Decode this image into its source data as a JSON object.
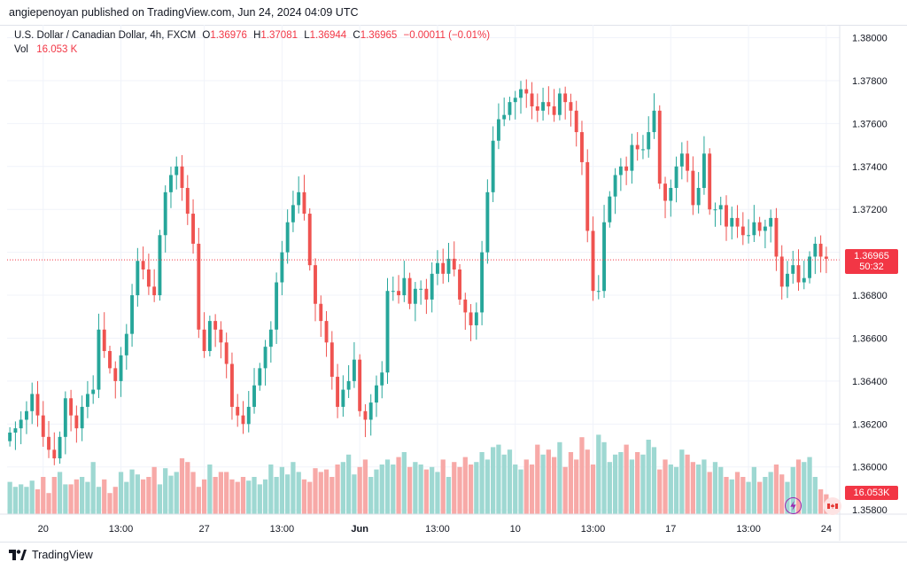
{
  "header": {
    "caption": "angiepenoyan published on TradingView.com, Jun 24, 2024 04:09 UTC"
  },
  "legend": {
    "symbol": "U.S. Dollar / Canadian Dollar, 4h, FXCM",
    "o_label": "O",
    "o_value": "1.36976",
    "h_label": "H",
    "h_value": "1.37081",
    "l_label": "L",
    "l_value": "1.36944",
    "c_label": "C",
    "c_value": "1.36965",
    "change": "−0.00011 (−0.01%)",
    "vol_label": "Vol",
    "vol_value": "16.053 K"
  },
  "price_tag": {
    "price": "1.36965",
    "countdown": "50:32"
  },
  "volume_tag": "16.053K",
  "footer": {
    "brand": "TradingView"
  },
  "colors": {
    "up": "#26a69a",
    "down": "#ef5350",
    "up_volume": "#9ed8d2",
    "down_volume": "#f7a9a7",
    "last_price": "#f23645"
  },
  "chart_data": {
    "type": "candlestick",
    "symbol": "USDCAD",
    "interval": "4h",
    "ylim": [
      1.3578,
      1.3806
    ],
    "y_ticks": [
      1.358,
      1.36,
      1.362,
      1.364,
      1.366,
      1.368,
      1.37,
      1.372,
      1.374,
      1.376,
      1.378,
      1.38
    ],
    "y_tick_labels": [
      "1.35800",
      "1.36000",
      "1.36200",
      "1.36400",
      "1.36600",
      "1.36800",
      "1.37000",
      "1.37200",
      "1.37400",
      "1.37600",
      "1.37800",
      "1.38000"
    ],
    "x_tick_labels": [
      {
        "label": "20",
        "bar": 6
      },
      {
        "label": "13:00",
        "bar": 20
      },
      {
        "label": "27",
        "bar": 35
      },
      {
        "label": "13:00",
        "bar": 49
      },
      {
        "label": "Jun",
        "bar": 63
      },
      {
        "label": "13:00",
        "bar": 77
      },
      {
        "label": "10",
        "bar": 91
      },
      {
        "label": "13:00",
        "bar": 105
      },
      {
        "label": "17",
        "bar": 119
      },
      {
        "label": "13:00",
        "bar": 133
      },
      {
        "label": "24",
        "bar": 147
      }
    ],
    "last_price": 1.36965,
    "volume_scale_max": 1,
    "series": [
      {
        "name": "USDCAD",
        "close": [
          1.3616,
          1.3618,
          1.3622,
          1.3626,
          1.3634,
          1.3624,
          1.3614,
          1.3608,
          1.3604,
          1.3614,
          1.3632,
          1.3624,
          1.3618,
          1.3628,
          1.3634,
          1.3636,
          1.3664,
          1.3654,
          1.3646,
          1.364,
          1.3652,
          1.3662,
          1.368,
          1.3696,
          1.3692,
          1.3684,
          1.368,
          1.3708,
          1.3728,
          1.3736,
          1.374,
          1.373,
          1.3718,
          1.3704,
          1.3664,
          1.3654,
          1.3668,
          1.3664,
          1.3658,
          1.3648,
          1.3628,
          1.3624,
          1.362,
          1.3628,
          1.3638,
          1.3646,
          1.3656,
          1.3664,
          1.3686,
          1.37,
          1.3714,
          1.3722,
          1.3728,
          1.3718,
          1.3694,
          1.3676,
          1.3668,
          1.3658,
          1.3642,
          1.3628,
          1.3636,
          1.364,
          1.365,
          1.3626,
          1.3622,
          1.363,
          1.3638,
          1.3644,
          1.3682,
          1.3682,
          1.368,
          1.3688,
          1.3676,
          1.3683,
          1.3683,
          1.3678,
          1.369,
          1.3695,
          1.369,
          1.3697,
          1.3692,
          1.3678,
          1.3672,
          1.3666,
          1.3672,
          1.37,
          1.3728,
          1.3752,
          1.3762,
          1.3764,
          1.377,
          1.3772,
          1.3776,
          1.3774,
          1.3768,
          1.3766,
          1.377,
          1.3768,
          1.3764,
          1.3774,
          1.377,
          1.3766,
          1.3756,
          1.3742,
          1.371,
          1.3682,
          1.3682,
          1.3714,
          1.3726,
          1.3736,
          1.374,
          1.3738,
          1.375,
          1.3748,
          1.3748,
          1.3756,
          1.3766,
          1.3732,
          1.3724,
          1.373,
          1.374,
          1.3746,
          1.3738,
          1.3722,
          1.373,
          1.3746,
          1.372,
          1.372,
          1.3722,
          1.3712,
          1.3716,
          1.3712,
          1.3708,
          1.3708,
          1.3714,
          1.371,
          1.3712,
          1.3716,
          1.3698,
          1.3684,
          1.369,
          1.3694,
          1.3686,
          1.3688,
          1.3698,
          1.3704,
          1.3698,
          1.3697
        ]
      }
    ],
    "volume": [
      0.26,
      0.22,
      0.24,
      0.22,
      0.27,
      0.2,
      0.3,
      0.17,
      0.3,
      0.34,
      0.24,
      0.24,
      0.28,
      0.3,
      0.26,
      0.42,
      0.22,
      0.28,
      0.17,
      0.22,
      0.34,
      0.26,
      0.36,
      0.32,
      0.28,
      0.3,
      0.38,
      0.24,
      0.37,
      0.31,
      0.34,
      0.45,
      0.42,
      0.34,
      0.22,
      0.28,
      0.4,
      0.3,
      0.34,
      0.34,
      0.28,
      0.26,
      0.3,
      0.27,
      0.3,
      0.24,
      0.28,
      0.4,
      0.3,
      0.38,
      0.32,
      0.42,
      0.34,
      0.28,
      0.26,
      0.37,
      0.34,
      0.36,
      0.3,
      0.4,
      0.42,
      0.48,
      0.32,
      0.38,
      0.44,
      0.3,
      0.36,
      0.4,
      0.44,
      0.4,
      0.46,
      0.5,
      0.38,
      0.42,
      0.4,
      0.36,
      0.38,
      0.34,
      0.44,
      0.3,
      0.42,
      0.38,
      0.46,
      0.4,
      0.42,
      0.5,
      0.44,
      0.54,
      0.56,
      0.48,
      0.52,
      0.4,
      0.36,
      0.44,
      0.4,
      0.56,
      0.48,
      0.52,
      0.46,
      0.58,
      0.38,
      0.5,
      0.44,
      0.62,
      0.52,
      0.4,
      0.64,
      0.58,
      0.42,
      0.48,
      0.5,
      0.56,
      0.44,
      0.5,
      0.48,
      0.6,
      0.54,
      0.36,
      0.44,
      0.4,
      0.38,
      0.52,
      0.48,
      0.42,
      0.4,
      0.44,
      0.34,
      0.42,
      0.38,
      0.3,
      0.28,
      0.34,
      0.3,
      0.26,
      0.38,
      0.26,
      0.3,
      0.34,
      0.4,
      0.32,
      0.26,
      0.38,
      0.44,
      0.42,
      0.46,
      0.3,
      0.2,
      0.16
    ]
  }
}
